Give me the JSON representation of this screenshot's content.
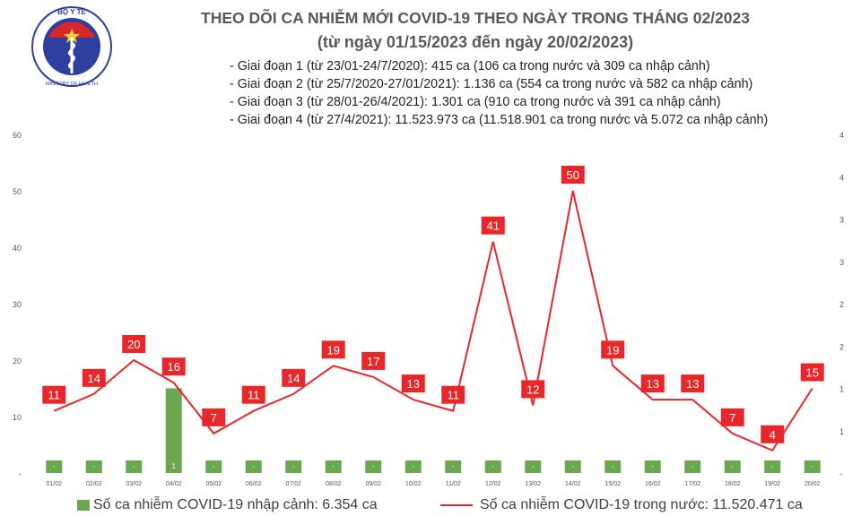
{
  "header": {
    "title_line1": "THEO DÕI CA NHIỄM MỚI COVID-19 THEO NGÀY TRONG THÁNG 02/2023",
    "title_line2": "(từ ngày 01/15/2023 đến ngày 20/02/2023)",
    "phases": [
      "- Giai đoạn 1 (từ 23/01-24/7/2020): 415 ca (106 ca trong nước và 309 ca nhập cảnh)",
      "- Giai đoạn 2 (từ 25/7/2020-27/01/2021): 1.136 ca (554 ca trong nước và 582 ca nhập cảnh)",
      "- Giai đoạn 3 (từ 28/01-26/4/2021): 1.301 ca (910 ca trong nước và 391 ca nhập cảnh)",
      "- Giai đoạn 4 (từ 27/4/2021): 11.523.973 ca (11.518.901 ca trong nước và 5.072 ca nhập cảnh)"
    ]
  },
  "logo": {
    "top_text": "BỘ Y TẾ",
    "bottom_text": "MINISTRY OF HEALTH"
  },
  "colors": {
    "bar": "#6aa84f",
    "line": "#e8272a",
    "label_bg": "#e8272a",
    "label_text": "#ffffff",
    "axis_text": "#595959"
  },
  "chart_data": {
    "type": "bar",
    "categories": [
      "01/02",
      "02/02",
      "03/02",
      "04/02",
      "05/02",
      "06/02",
      "07/02",
      "08/02",
      "09/02",
      "10/02",
      "11/02",
      "12/02",
      "13/02",
      "14/02",
      "15/02",
      "16/02",
      "17/02",
      "18/02",
      "19/02",
      "20/02"
    ],
    "y_left": {
      "min": 0,
      "max": 60,
      "ticks": [
        0,
        10,
        20,
        30,
        40,
        50,
        60
      ],
      "tick_labels": [
        "-",
        "10",
        "20",
        "30",
        "40",
        "50",
        "60"
      ]
    },
    "y_right": {
      "min": 0,
      "max": 4,
      "ticks": [
        0,
        0.5,
        1,
        1.5,
        2,
        2.5,
        3,
        3.5,
        4
      ],
      "tick_labels": [
        "-",
        "1",
        "1",
        "2",
        "2",
        "3",
        "3",
        "4",
        "4"
      ]
    },
    "series": [
      {
        "name": "Số ca nhiễm COVID-19 nhập cảnh: 6.354 ca",
        "type": "bar",
        "axis": "left",
        "values": [
          0,
          0,
          0,
          1,
          0,
          0,
          0,
          0,
          0,
          0,
          0,
          0,
          0,
          0,
          0,
          0,
          0,
          0,
          0,
          0
        ],
        "data_labels": [
          "-",
          "-",
          "-",
          "1",
          "-",
          "-",
          "-",
          "-",
          "-",
          "-",
          "-",
          "-",
          "-",
          "-",
          "-",
          "-",
          "-",
          "-",
          "-",
          "-"
        ]
      },
      {
        "name": "Số ca nhiễm COVID-19 trong nước: 11.520.471 ca",
        "type": "line",
        "axis": "right",
        "values": [
          11,
          14,
          20,
          16,
          7,
          11,
          14,
          19,
          17,
          13,
          11,
          41,
          12,
          50,
          19,
          13,
          13,
          7,
          4,
          15
        ],
        "data_labels": [
          "11",
          "14",
          "20",
          "16",
          "7",
          "11",
          "14",
          "19",
          "17",
          "13",
          "11",
          "41",
          "12",
          "50",
          "19",
          "13",
          "13",
          "7",
          "4",
          "15"
        ]
      }
    ],
    "grid": false,
    "legend": "bottom"
  }
}
